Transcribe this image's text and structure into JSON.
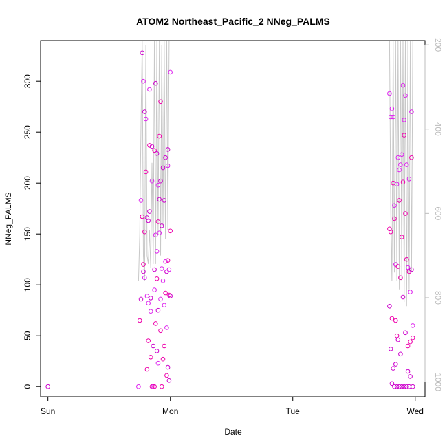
{
  "chart_data": {
    "type": "scatter",
    "title": "ATOM2 Northeast_Pacific_2 NNeg_PALMS",
    "xlabel": "Date",
    "ylabel": "NNeg_PALMS",
    "x_ticks": [
      "Sun",
      "Mon",
      "Tue",
      "Wed"
    ],
    "x_range": [
      -0.06,
      3.08
    ],
    "ylim": [
      -10,
      340
    ],
    "y_ticks": [
      0,
      50,
      100,
      150,
      200,
      250,
      300
    ],
    "y2_ticks": [
      200,
      400,
      600,
      800,
      1000
    ],
    "y2_range": [
      1035,
      190
    ],
    "marker_colors": [
      "#cc00cc",
      "#dd22ee",
      "#ee00aa"
    ],
    "line_color": "#c8c8c8",
    "grid": false,
    "series": [
      {
        "kind": "points",
        "points": [
          [
            0.0,
            0
          ],
          [
            0.74,
            0
          ],
          [
            0.75,
            65
          ],
          [
            0.76,
            86
          ],
          [
            0.76,
            183
          ],
          [
            0.77,
            167
          ],
          [
            0.77,
            328
          ],
          [
            0.78,
            300
          ],
          [
            0.78,
            120
          ],
          [
            0.78,
            113
          ],
          [
            0.79,
            107
          ],
          [
            0.79,
            152
          ],
          [
            0.79,
            270
          ],
          [
            0.8,
            263
          ],
          [
            0.8,
            211
          ],
          [
            0.81,
            166
          ],
          [
            0.81,
            89
          ],
          [
            0.81,
            17
          ],
          [
            0.82,
            163
          ],
          [
            0.82,
            82
          ],
          [
            0.82,
            45
          ],
          [
            0.83,
            172
          ],
          [
            0.83,
            292
          ],
          [
            0.83,
            237
          ],
          [
            0.84,
            87
          ],
          [
            0.84,
            74
          ],
          [
            0.84,
            29
          ],
          [
            0.85,
            236
          ],
          [
            0.85,
            202
          ],
          [
            0.85,
            0
          ],
          [
            0.86,
            40
          ],
          [
            0.86,
            0
          ],
          [
            0.87,
            232
          ],
          [
            0.87,
            115
          ],
          [
            0.87,
            95
          ],
          [
            0.87,
            0
          ],
          [
            0.88,
            298
          ],
          [
            0.88,
            149
          ],
          [
            0.88,
            62
          ],
          [
            0.89,
            229
          ],
          [
            0.89,
            133
          ],
          [
            0.89,
            106
          ],
          [
            0.89,
            35
          ],
          [
            0.9,
            198
          ],
          [
            0.9,
            162
          ],
          [
            0.9,
            75
          ],
          [
            0.9,
            23
          ],
          [
            0.91,
            246
          ],
          [
            0.91,
            184
          ],
          [
            0.91,
            151
          ],
          [
            0.92,
            280
          ],
          [
            0.92,
            202
          ],
          [
            0.92,
            86
          ],
          [
            0.92,
            55
          ],
          [
            0.93,
            158
          ],
          [
            0.93,
            116
          ],
          [
            0.93,
            0
          ],
          [
            0.94,
            215
          ],
          [
            0.94,
            104
          ],
          [
            0.94,
            27
          ],
          [
            0.95,
            183
          ],
          [
            0.95,
            80
          ],
          [
            0.95,
            40
          ],
          [
            0.96,
            225
          ],
          [
            0.96,
            123
          ],
          [
            0.96,
            92
          ],
          [
            0.97,
            113
          ],
          [
            0.97,
            58
          ],
          [
            0.97,
            11
          ],
          [
            0.98,
            233
          ],
          [
            0.98,
            217
          ],
          [
            0.98,
            124
          ],
          [
            0.98,
            19
          ],
          [
            0.99,
            115
          ],
          [
            0.99,
            90
          ],
          [
            0.99,
            6
          ],
          [
            1.0,
            309
          ],
          [
            1.0,
            153
          ],
          [
            1.0,
            89
          ],
          [
            2.79,
            288
          ],
          [
            2.79,
            155
          ],
          [
            2.79,
            79
          ],
          [
            2.8,
            265
          ],
          [
            2.8,
            152
          ],
          [
            2.8,
            37
          ],
          [
            2.81,
            273
          ],
          [
            2.81,
            67
          ],
          [
            2.81,
            3
          ],
          [
            2.82,
            265
          ],
          [
            2.82,
            200
          ],
          [
            2.82,
            18
          ],
          [
            2.83,
            178
          ],
          [
            2.83,
            165
          ],
          [
            2.83,
            0
          ],
          [
            2.84,
            120
          ],
          [
            2.84,
            65
          ],
          [
            2.84,
            22
          ],
          [
            2.85,
            199
          ],
          [
            2.85,
            50
          ],
          [
            2.85,
            0
          ],
          [
            2.86,
            225
          ],
          [
            2.86,
            118
          ],
          [
            2.86,
            46
          ],
          [
            2.87,
            213
          ],
          [
            2.87,
            183
          ],
          [
            2.87,
            0
          ],
          [
            2.88,
            218
          ],
          [
            2.88,
            107
          ],
          [
            2.88,
            32
          ],
          [
            2.89,
            228
          ],
          [
            2.89,
            147
          ],
          [
            2.89,
            0
          ],
          [
            2.9,
            296
          ],
          [
            2.9,
            201
          ],
          [
            2.9,
            88
          ],
          [
            2.91,
            262
          ],
          [
            2.91,
            247
          ],
          [
            2.91,
            0
          ],
          [
            2.92,
            286
          ],
          [
            2.92,
            170
          ],
          [
            2.92,
            53
          ],
          [
            2.93,
            218
          ],
          [
            2.93,
            125
          ],
          [
            2.93,
            0
          ],
          [
            2.94,
            117
          ],
          [
            2.94,
            40
          ],
          [
            2.94,
            15
          ],
          [
            2.95,
            204
          ],
          [
            2.95,
            113
          ],
          [
            2.95,
            0
          ],
          [
            2.96,
            93
          ],
          [
            2.96,
            44
          ],
          [
            2.96,
            10
          ],
          [
            2.97,
            270
          ],
          [
            2.97,
            225
          ],
          [
            2.97,
            115
          ],
          [
            2.98,
            60
          ],
          [
            2.98,
            48
          ],
          [
            2.98,
            0
          ]
        ]
      },
      {
        "kind": "line",
        "points": [
          [
            0.74,
            760
          ],
          [
            0.75,
            650
          ],
          [
            0.76,
            390
          ],
          [
            0.77,
            190
          ],
          [
            0.78,
            700
          ],
          [
            0.79,
            760
          ],
          [
            0.8,
            200
          ],
          [
            0.81,
            700
          ],
          [
            0.82,
            720
          ],
          [
            0.83,
            640
          ],
          [
            0.84,
            730
          ],
          [
            0.85,
            480
          ],
          [
            0.86,
            720
          ],
          [
            0.87,
            180
          ],
          [
            0.88,
            720
          ],
          [
            0.89,
            190
          ],
          [
            0.9,
            650
          ],
          [
            0.91,
            190
          ],
          [
            0.92,
            700
          ],
          [
            0.93,
            200
          ],
          [
            0.94,
            630
          ],
          [
            0.95,
            190
          ],
          [
            0.96,
            660
          ],
          [
            0.97,
            180
          ],
          [
            0.98,
            640
          ],
          [
            0.99,
            190
          ],
          [
            2.75,
            190
          ],
          [
            2.79,
            190
          ],
          [
            2.8,
            600
          ],
          [
            2.81,
            760
          ],
          [
            2.82,
            190
          ],
          [
            2.83,
            740
          ],
          [
            2.84,
            190
          ],
          [
            2.85,
            760
          ],
          [
            2.86,
            190
          ],
          [
            2.87,
            780
          ],
          [
            2.88,
            190
          ],
          [
            2.89,
            760
          ],
          [
            2.9,
            190
          ],
          [
            2.91,
            810
          ],
          [
            2.92,
            190
          ],
          [
            2.93,
            820
          ],
          [
            2.94,
            190
          ],
          [
            2.95,
            780
          ],
          [
            2.96,
            190
          ],
          [
            2.97,
            740
          ],
          [
            2.98,
            190
          ]
        ]
      }
    ]
  }
}
